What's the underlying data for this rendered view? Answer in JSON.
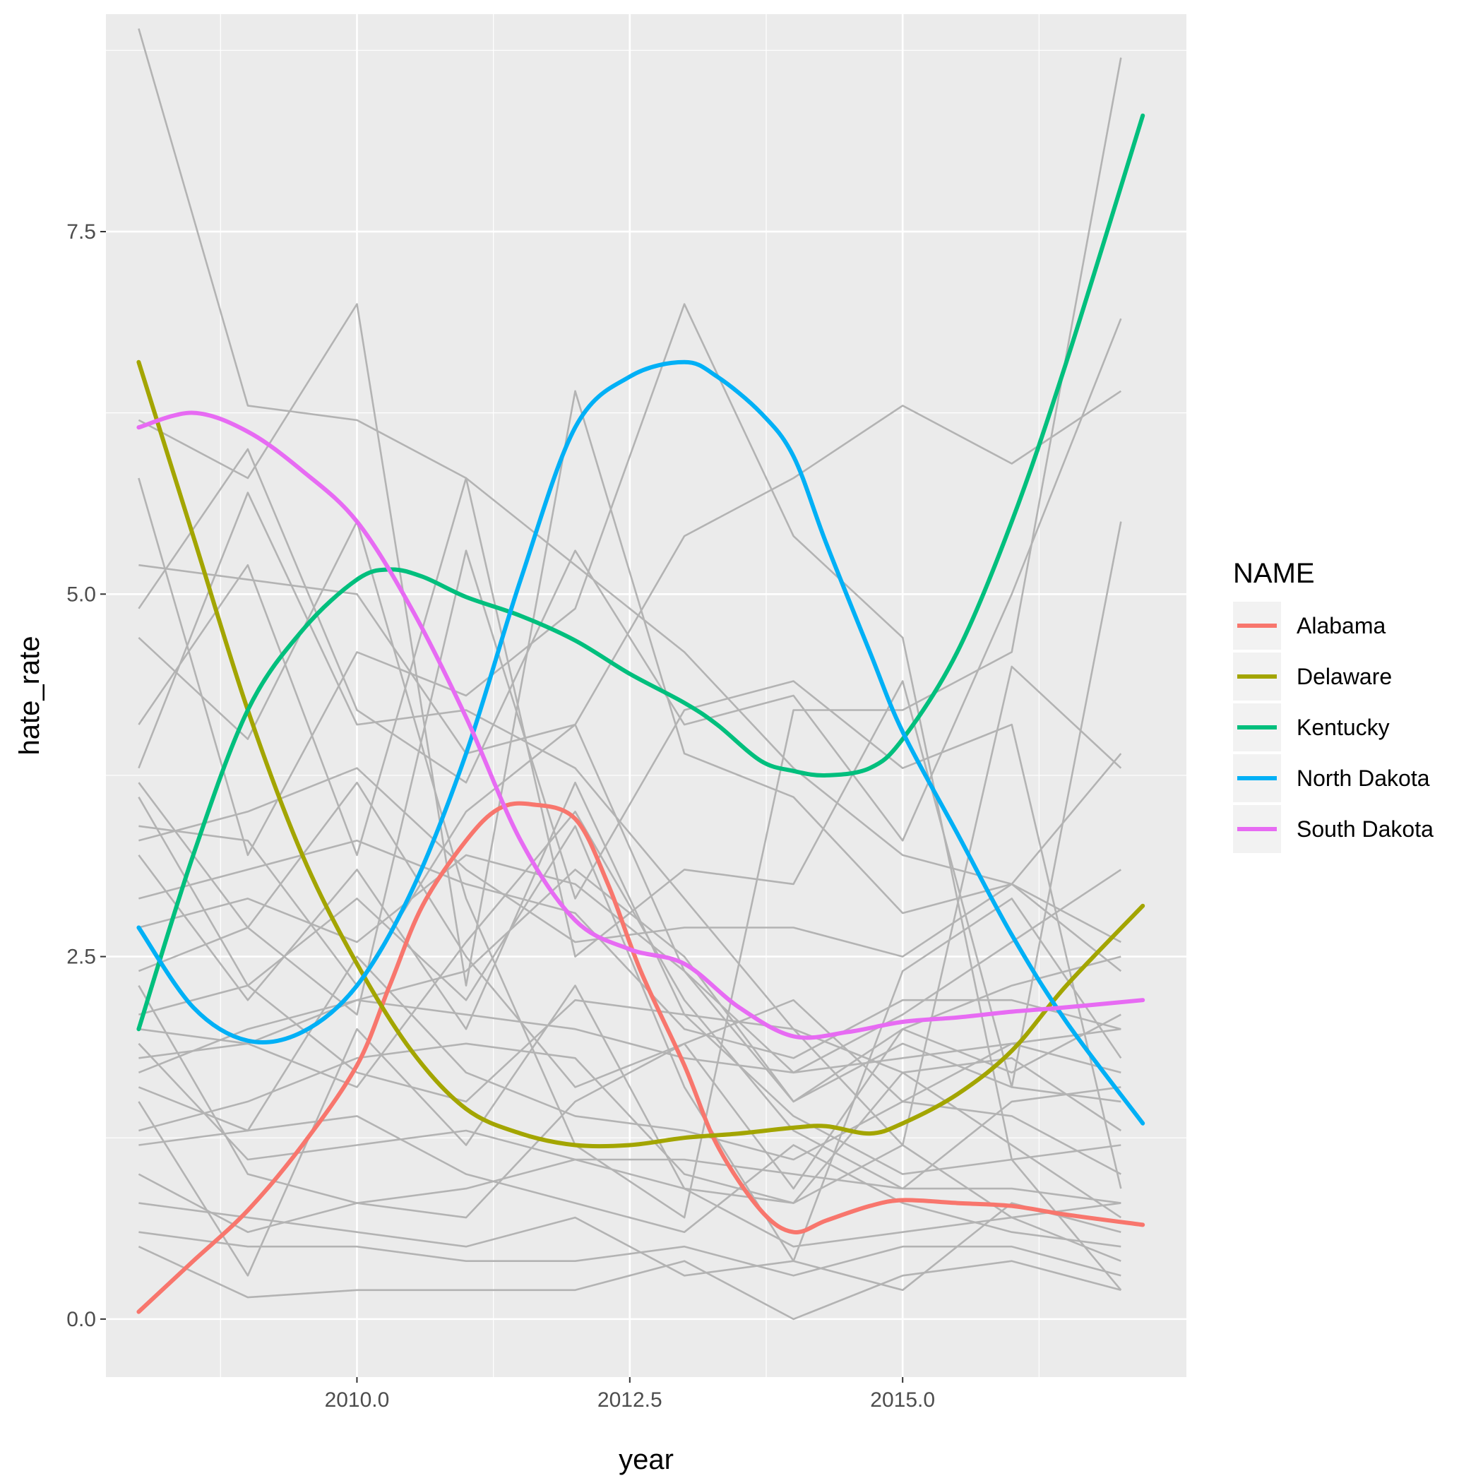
{
  "chart_data": {
    "type": "line",
    "xlabel": "year",
    "ylabel": "hate_rate",
    "xlim": [
      2007.7,
      2017.6
    ],
    "ylim": [
      -0.4,
      9.0
    ],
    "x_ticks": [
      {
        "value": 2010,
        "label": "2010.0"
      },
      {
        "value": 2012.5,
        "label": "2012.5"
      },
      {
        "value": 2015,
        "label": "2015.0"
      }
    ],
    "y_ticks": [
      {
        "value": 0,
        "label": "0.0"
      },
      {
        "value": 2.5,
        "label": "2.5"
      },
      {
        "value": 5,
        "label": "5.0"
      },
      {
        "value": 7.5,
        "label": "7.5"
      }
    ],
    "grid": true,
    "legend": {
      "title": "NAME",
      "position": "right"
    },
    "background_series": {
      "color": "#b3b3b3",
      "x": [
        2008,
        2009,
        2010,
        2011,
        2012,
        2013,
        2014,
        2015,
        2016,
        2017
      ],
      "lines": [
        [
          8.9,
          6.3,
          6.2,
          5.8,
          5.2,
          4.6,
          3.8,
          3.2,
          3.0,
          2.6
        ],
        [
          6.2,
          5.8,
          7.0,
          2.3,
          6.4,
          3.9,
          3.6,
          2.8,
          3.0,
          2.4
        ],
        [
          5.8,
          3.2,
          4.6,
          4.3,
          4.9,
          7.0,
          5.4,
          4.7,
          1.1,
          0.2
        ],
        [
          5.2,
          5.1,
          5.0,
          3.9,
          4.1,
          5.4,
          5.8,
          6.3,
          5.9,
          6.4
        ],
        [
          4.9,
          6.0,
          4.2,
          3.7,
          5.3,
          4.1,
          4.3,
          3.3,
          5.0,
          6.9
        ],
        [
          4.7,
          4.0,
          5.5,
          2.9,
          1.2,
          0.7,
          4.2,
          4.2,
          4.6,
          8.7
        ],
        [
          4.1,
          5.2,
          3.2,
          5.8,
          2.5,
          3.1,
          3.0,
          4.4,
          1.6,
          5.5
        ],
        [
          3.8,
          5.7,
          4.1,
          4.2,
          3.8,
          2.9,
          2.0,
          1.2,
          4.5,
          3.8
        ],
        [
          3.7,
          2.7,
          2.1,
          5.3,
          2.9,
          4.2,
          4.4,
          3.8,
          4.1,
          0.9
        ],
        [
          3.4,
          3.3,
          2.3,
          3.5,
          4.1,
          2.4,
          1.7,
          2.1,
          2.6,
          3.1
        ],
        [
          3.3,
          3.5,
          3.8,
          3.1,
          2.6,
          2.7,
          2.7,
          2.5,
          3.0,
          3.9
        ],
        [
          3.2,
          2.2,
          3.1,
          2.0,
          3.7,
          2.1,
          2.0,
          1.7,
          1.8,
          1.3
        ],
        [
          2.9,
          3.1,
          3.3,
          3.0,
          2.8,
          2.0,
          1.8,
          2.2,
          2.2,
          2.0
        ],
        [
          2.7,
          2.9,
          2.6,
          3.2,
          3.0,
          2.4,
          1.5,
          2.0,
          2.3,
          2.5
        ],
        [
          2.4,
          2.7,
          3.7,
          2.5,
          1.6,
          1.9,
          0.9,
          2.0,
          1.7,
          2.1
        ],
        [
          2.1,
          2.3,
          2.9,
          2.2,
          3.4,
          1.6,
          0.4,
          2.4,
          2.9,
          1.8
        ],
        [
          2.0,
          1.9,
          2.2,
          2.1,
          2.0,
          1.8,
          1.7,
          1.8,
          1.9,
          2.0
        ],
        [
          1.8,
          1.9,
          1.6,
          2.6,
          3.5,
          2.2,
          1.3,
          0.9,
          1.5,
          1.6
        ],
        [
          1.6,
          1.3,
          2.5,
          1.7,
          1.4,
          1.3,
          1.1,
          1.5,
          1.4,
          1.0
        ],
        [
          1.5,
          0.3,
          2.0,
          1.2,
          2.3,
          0.9,
          0.8,
          1.7,
          1.2,
          0.7
        ],
        [
          1.3,
          1.5,
          1.8,
          1.9,
          1.8,
          1.0,
          0.8,
          1.2,
          0.7,
          0.8
        ],
        [
          1.2,
          1.3,
          1.4,
          1.0,
          0.8,
          0.6,
          1.2,
          0.8,
          0.6,
          0.5
        ],
        [
          1.0,
          0.6,
          0.8,
          0.9,
          1.1,
          0.9,
          0.5,
          0.6,
          0.7,
          0.4
        ],
        [
          0.8,
          0.7,
          0.6,
          0.5,
          0.7,
          0.3,
          0.4,
          0.2,
          0.8,
          0.6
        ],
        [
          0.6,
          0.5,
          0.5,
          0.4,
          0.4,
          0.5,
          0.3,
          0.5,
          0.5,
          0.3
        ],
        [
          0.5,
          0.15,
          0.2,
          0.2,
          0.2,
          0.4,
          0.0,
          0.3,
          0.4,
          0.2
        ],
        [
          2.3,
          1.0,
          0.8,
          0.7,
          1.5,
          1.9,
          2.2,
          1.5,
          1.9,
          1.7
        ],
        [
          1.9,
          1.1,
          1.2,
          1.3,
          1.1,
          1.1,
          1.0,
          0.9,
          0.9,
          0.8
        ],
        [
          3.6,
          2.3,
          1.7,
          1.5,
          2.2,
          2.1,
          1.4,
          1.0,
          1.1,
          1.2
        ],
        [
          1.7,
          2.0,
          2.2,
          2.4,
          3.1,
          2.5,
          1.5,
          1.9,
          1.6,
          1.5
        ]
      ]
    },
    "series": [
      {
        "name": "Alabama",
        "color": "#f8766d",
        "x": [
          2008,
          2008.5,
          2009,
          2009.5,
          2010,
          2010.3,
          2010.6,
          2011,
          2011.3,
          2011.6,
          2012,
          2012.3,
          2012.6,
          2013,
          2013.3,
          2013.7,
          2014,
          2014.3,
          2014.7,
          2015,
          2015.5,
          2016,
          2016.5,
          2017.2
        ],
        "values": [
          0.05,
          0.4,
          0.75,
          1.2,
          1.75,
          2.3,
          2.85,
          3.3,
          3.52,
          3.55,
          3.45,
          3.0,
          2.4,
          1.75,
          1.2,
          0.75,
          0.6,
          0.68,
          0.78,
          0.82,
          0.8,
          0.78,
          0.72,
          0.65
        ]
      },
      {
        "name": "Delaware",
        "color": "#a3a500",
        "x": [
          2008,
          2008.5,
          2009,
          2009.5,
          2010,
          2010.5,
          2011,
          2011.5,
          2012,
          2012.5,
          2013,
          2013.5,
          2014,
          2014.3,
          2014.7,
          2015,
          2015.5,
          2016,
          2016.5,
          2017.2
        ],
        "values": [
          6.6,
          5.4,
          4.2,
          3.2,
          2.45,
          1.85,
          1.45,
          1.28,
          1.2,
          1.2,
          1.25,
          1.28,
          1.32,
          1.33,
          1.28,
          1.35,
          1.55,
          1.85,
          2.3,
          2.85
        ]
      },
      {
        "name": "Kentucky",
        "color": "#00bf7d",
        "x": [
          2008,
          2008.5,
          2009,
          2009.5,
          2010,
          2010.3,
          2010.6,
          2011,
          2011.5,
          2012,
          2012.5,
          2013,
          2013.3,
          2013.7,
          2014,
          2014.3,
          2014.7,
          2015,
          2015.5,
          2016,
          2016.5,
          2017.2
        ],
        "values": [
          2.0,
          3.2,
          4.2,
          4.75,
          5.1,
          5.17,
          5.12,
          4.98,
          4.85,
          4.68,
          4.45,
          4.25,
          4.1,
          3.85,
          3.78,
          3.75,
          3.8,
          4.0,
          4.6,
          5.5,
          6.6,
          8.3
        ]
      },
      {
        "name": "North Dakota",
        "color": "#00b0f6",
        "x": [
          2008,
          2008.5,
          2009,
          2009.5,
          2010,
          2010.5,
          2011,
          2011.5,
          2012,
          2012.5,
          2013,
          2013.3,
          2013.7,
          2014,
          2014.3,
          2014.7,
          2015,
          2015.5,
          2016,
          2016.5,
          2017.2
        ],
        "values": [
          2.7,
          2.15,
          1.92,
          1.98,
          2.3,
          2.95,
          3.9,
          5.1,
          6.15,
          6.5,
          6.6,
          6.5,
          6.25,
          5.95,
          5.35,
          4.6,
          4.05,
          3.35,
          2.65,
          2.05,
          1.35
        ]
      },
      {
        "name": "South Dakota",
        "color": "#e76bf3",
        "x": [
          2008,
          2008.5,
          2009,
          2009.5,
          2010,
          2010.5,
          2011,
          2011.5,
          2012,
          2012.5,
          2013,
          2013.5,
          2014,
          2014.5,
          2015,
          2015.5,
          2016,
          2016.5,
          2017.2
        ],
        "values": [
          6.15,
          6.25,
          6.12,
          5.85,
          5.5,
          4.9,
          4.15,
          3.3,
          2.75,
          2.55,
          2.45,
          2.15,
          1.95,
          1.98,
          2.05,
          2.08,
          2.12,
          2.15,
          2.2
        ]
      }
    ]
  }
}
